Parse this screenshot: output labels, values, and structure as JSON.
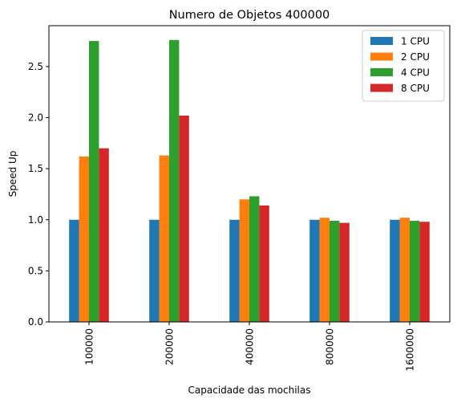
{
  "chart_data": {
    "type": "bar",
    "title": "Numero de Objetos 400000",
    "xlabel": "Capacidade das mochilas",
    "ylabel": "Speed Up",
    "categories": [
      "100000",
      "200000",
      "400000",
      "800000",
      "1600000"
    ],
    "series": [
      {
        "name": "1 CPU",
        "color": "#1f77b4",
        "values": [
          1.0,
          1.0,
          1.0,
          1.0,
          1.0
        ]
      },
      {
        "name": "2 CPU",
        "color": "#ff7f0e",
        "values": [
          1.62,
          1.63,
          1.2,
          1.02,
          1.02
        ]
      },
      {
        "name": "4 CPU",
        "color": "#2ca02c",
        "values": [
          2.75,
          2.76,
          1.23,
          0.99,
          0.99
        ]
      },
      {
        "name": "8 CPU",
        "color": "#d62728",
        "values": [
          1.7,
          2.02,
          1.14,
          0.97,
          0.98
        ]
      }
    ],
    "ylim": [
      0,
      2.9
    ],
    "yticks": [
      0.0,
      0.5,
      1.0,
      1.5,
      2.0,
      2.5
    ],
    "ytick_labels": [
      "0.0",
      "0.5",
      "1.0",
      "1.5",
      "2.0",
      "2.5"
    ],
    "grid": false,
    "legend_position": "top-right"
  }
}
